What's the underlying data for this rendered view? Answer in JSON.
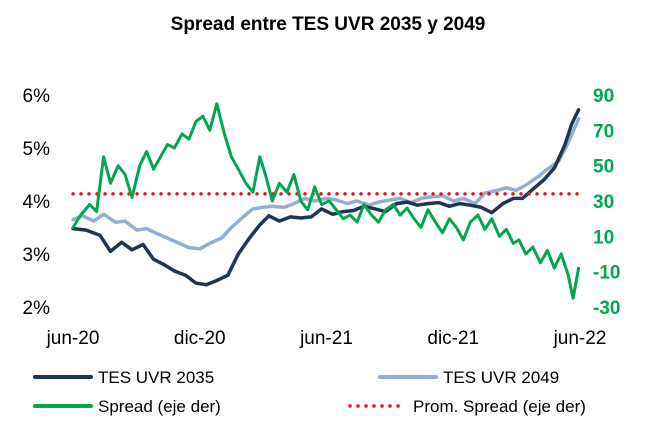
{
  "chart_data": {
    "type": "line",
    "title": "Spread entre TES UVR 2035 y 2049",
    "x_ticks": [
      "jun-20",
      "dic-20",
      "jun-21",
      "dic-21",
      "jun-22"
    ],
    "x_range": [
      "2020-06-01",
      "2022-06-01"
    ],
    "y_left": {
      "ticks": [
        "2%",
        "3%",
        "4%",
        "5%",
        "6%"
      ],
      "range": [
        2,
        6
      ],
      "unit": "%"
    },
    "y_right": {
      "ticks": [
        "-30",
        "-10",
        "10",
        "30",
        "50",
        "70",
        "90"
      ],
      "range": [
        -30,
        90
      ]
    },
    "grid": false,
    "legend_position": "bottom",
    "series": [
      {
        "name": "TES UVR 2035",
        "axis": "left",
        "color": "#1f3553",
        "style": "solid",
        "points": [
          [
            "2020-06-01",
            3.48
          ],
          [
            "2020-06-20",
            3.45
          ],
          [
            "2020-07-10",
            3.35
          ],
          [
            "2020-07-25",
            3.05
          ],
          [
            "2020-08-10",
            3.22
          ],
          [
            "2020-08-25",
            3.08
          ],
          [
            "2020-09-10",
            3.18
          ],
          [
            "2020-09-25",
            2.9
          ],
          [
            "2020-10-10",
            2.8
          ],
          [
            "2020-10-25",
            2.68
          ],
          [
            "2020-11-10",
            2.6
          ],
          [
            "2020-11-25",
            2.45
          ],
          [
            "2020-12-10",
            2.42
          ],
          [
            "2020-12-25",
            2.5
          ],
          [
            "2021-01-10",
            2.6
          ],
          [
            "2021-01-25",
            3.0
          ],
          [
            "2021-02-10",
            3.3
          ],
          [
            "2021-02-25",
            3.55
          ],
          [
            "2021-03-10",
            3.72
          ],
          [
            "2021-03-25",
            3.62
          ],
          [
            "2021-04-10",
            3.7
          ],
          [
            "2021-04-25",
            3.68
          ],
          [
            "2021-05-10",
            3.7
          ],
          [
            "2021-05-25",
            3.85
          ],
          [
            "2021-06-10",
            3.75
          ],
          [
            "2021-06-25",
            3.8
          ],
          [
            "2021-07-10",
            3.82
          ],
          [
            "2021-07-25",
            3.9
          ],
          [
            "2021-08-10",
            3.85
          ],
          [
            "2021-08-25",
            3.8
          ],
          [
            "2021-09-10",
            3.95
          ],
          [
            "2021-09-25",
            3.98
          ],
          [
            "2021-10-10",
            3.92
          ],
          [
            "2021-10-25",
            3.95
          ],
          [
            "2021-11-10",
            3.97
          ],
          [
            "2021-11-25",
            3.9
          ],
          [
            "2021-12-10",
            3.95
          ],
          [
            "2021-12-25",
            3.92
          ],
          [
            "2022-01-10",
            3.88
          ],
          [
            "2022-01-25",
            3.78
          ],
          [
            "2022-02-10",
            3.95
          ],
          [
            "2022-02-25",
            4.05
          ],
          [
            "2022-03-10",
            4.05
          ],
          [
            "2022-03-25",
            4.22
          ],
          [
            "2022-04-10",
            4.4
          ],
          [
            "2022-04-25",
            4.62
          ],
          [
            "2022-05-10",
            5.05
          ],
          [
            "2022-05-20",
            5.45
          ],
          [
            "2022-05-30",
            5.72
          ]
        ]
      },
      {
        "name": "TES UVR 2049",
        "axis": "left",
        "color": "#93aed3",
        "style": "solid",
        "points": [
          [
            "2020-06-01",
            3.65
          ],
          [
            "2020-06-15",
            3.72
          ],
          [
            "2020-07-01",
            3.62
          ],
          [
            "2020-07-15",
            3.75
          ],
          [
            "2020-08-01",
            3.6
          ],
          [
            "2020-08-15",
            3.62
          ],
          [
            "2020-09-01",
            3.45
          ],
          [
            "2020-09-15",
            3.48
          ],
          [
            "2020-10-01",
            3.38
          ],
          [
            "2020-10-15",
            3.3
          ],
          [
            "2020-11-01",
            3.2
          ],
          [
            "2020-11-15",
            3.12
          ],
          [
            "2020-12-01",
            3.1
          ],
          [
            "2020-12-15",
            3.2
          ],
          [
            "2021-01-01",
            3.3
          ],
          [
            "2021-01-15",
            3.5
          ],
          [
            "2021-02-01",
            3.7
          ],
          [
            "2021-02-15",
            3.85
          ],
          [
            "2021-03-01",
            3.88
          ],
          [
            "2021-03-15",
            3.9
          ],
          [
            "2021-04-01",
            3.88
          ],
          [
            "2021-04-15",
            3.95
          ],
          [
            "2021-05-01",
            4.05
          ],
          [
            "2021-05-15",
            4.0
          ],
          [
            "2021-06-01",
            4.05
          ],
          [
            "2021-06-15",
            4.02
          ],
          [
            "2021-07-01",
            3.95
          ],
          [
            "2021-07-15",
            4.0
          ],
          [
            "2021-08-01",
            3.92
          ],
          [
            "2021-08-15",
            3.98
          ],
          [
            "2021-09-01",
            4.02
          ],
          [
            "2021-09-15",
            4.05
          ],
          [
            "2021-10-01",
            3.97
          ],
          [
            "2021-10-15",
            4.05
          ],
          [
            "2021-11-01",
            4.08
          ],
          [
            "2021-11-15",
            4.1
          ],
          [
            "2021-12-01",
            4.0
          ],
          [
            "2021-12-15",
            4.05
          ],
          [
            "2022-01-01",
            3.95
          ],
          [
            "2022-01-15",
            4.15
          ],
          [
            "2022-02-01",
            4.2
          ],
          [
            "2022-02-15",
            4.25
          ],
          [
            "2022-03-01",
            4.2
          ],
          [
            "2022-03-15",
            4.3
          ],
          [
            "2022-04-01",
            4.45
          ],
          [
            "2022-04-15",
            4.6
          ],
          [
            "2022-05-01",
            4.75
          ],
          [
            "2022-05-15",
            5.1
          ],
          [
            "2022-05-30",
            5.55
          ]
        ]
      },
      {
        "name": "Spread (eje der)",
        "axis": "right",
        "color": "#00a650",
        "style": "solid",
        "points": [
          [
            "2020-06-01",
            15
          ],
          [
            "2020-06-12",
            22
          ],
          [
            "2020-06-25",
            28
          ],
          [
            "2020-07-05",
            24
          ],
          [
            "2020-07-15",
            55
          ],
          [
            "2020-07-25",
            40
          ],
          [
            "2020-08-05",
            50
          ],
          [
            "2020-08-15",
            45
          ],
          [
            "2020-08-25",
            32
          ],
          [
            "2020-09-05",
            50
          ],
          [
            "2020-09-15",
            58
          ],
          [
            "2020-09-25",
            48
          ],
          [
            "2020-10-05",
            55
          ],
          [
            "2020-10-15",
            62
          ],
          [
            "2020-10-25",
            60
          ],
          [
            "2020-11-05",
            68
          ],
          [
            "2020-11-15",
            65
          ],
          [
            "2020-11-25",
            75
          ],
          [
            "2020-12-05",
            78
          ],
          [
            "2020-12-15",
            70
          ],
          [
            "2020-12-25",
            85
          ],
          [
            "2021-01-05",
            68
          ],
          [
            "2021-01-15",
            55
          ],
          [
            "2021-01-25",
            48
          ],
          [
            "2021-02-05",
            40
          ],
          [
            "2021-02-15",
            35
          ],
          [
            "2021-02-25",
            55
          ],
          [
            "2021-03-05",
            45
          ],
          [
            "2021-03-15",
            30
          ],
          [
            "2021-03-25",
            40
          ],
          [
            "2021-04-05",
            35
          ],
          [
            "2021-04-15",
            45
          ],
          [
            "2021-04-25",
            30
          ],
          [
            "2021-05-05",
            25
          ],
          [
            "2021-05-15",
            38
          ],
          [
            "2021-05-25",
            28
          ],
          [
            "2021-06-05",
            30
          ],
          [
            "2021-06-15",
            25
          ],
          [
            "2021-06-25",
            20
          ],
          [
            "2021-07-05",
            22
          ],
          [
            "2021-07-15",
            18
          ],
          [
            "2021-07-25",
            28
          ],
          [
            "2021-08-05",
            22
          ],
          [
            "2021-08-15",
            18
          ],
          [
            "2021-08-25",
            25
          ],
          [
            "2021-09-05",
            28
          ],
          [
            "2021-09-15",
            22
          ],
          [
            "2021-09-25",
            26
          ],
          [
            "2021-10-05",
            20
          ],
          [
            "2021-10-15",
            15
          ],
          [
            "2021-10-25",
            25
          ],
          [
            "2021-11-05",
            18
          ],
          [
            "2021-11-15",
            12
          ],
          [
            "2021-11-25",
            20
          ],
          [
            "2021-12-05",
            15
          ],
          [
            "2021-12-15",
            8
          ],
          [
            "2021-12-25",
            18
          ],
          [
            "2022-01-05",
            22
          ],
          [
            "2022-01-15",
            14
          ],
          [
            "2022-01-25",
            20
          ],
          [
            "2022-02-05",
            10
          ],
          [
            "2022-02-15",
            14
          ],
          [
            "2022-02-25",
            6
          ],
          [
            "2022-03-05",
            8
          ],
          [
            "2022-03-15",
            0
          ],
          [
            "2022-03-25",
            4
          ],
          [
            "2022-04-05",
            -5
          ],
          [
            "2022-04-15",
            2
          ],
          [
            "2022-04-25",
            -8
          ],
          [
            "2022-05-05",
            0
          ],
          [
            "2022-05-15",
            -12
          ],
          [
            "2022-05-22",
            -25
          ],
          [
            "2022-05-30",
            -8
          ]
        ]
      },
      {
        "name": "Prom. Spread (eje der)",
        "axis": "right",
        "color": "#e8101f",
        "style": "dotted",
        "points": [
          [
            "2020-06-01",
            34
          ],
          [
            "2022-05-30",
            34
          ]
        ]
      }
    ]
  }
}
